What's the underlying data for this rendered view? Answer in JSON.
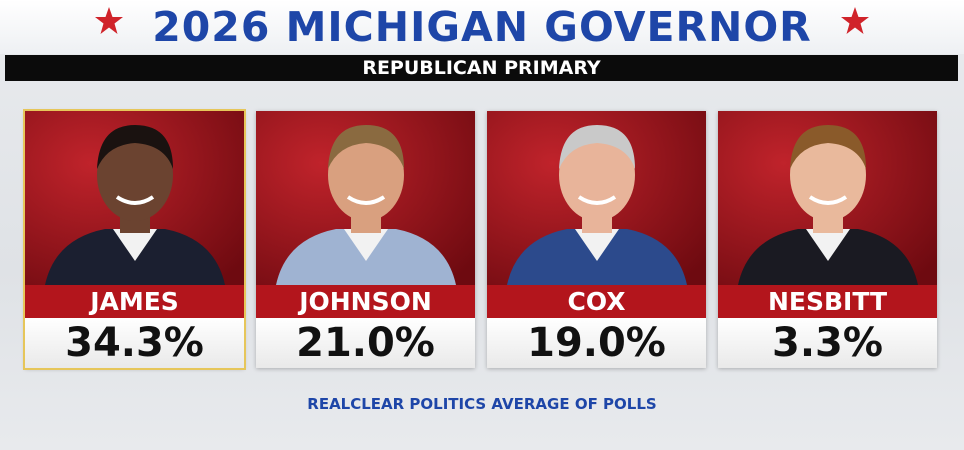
{
  "header": {
    "title": "2026 MICHIGAN GOVERNOR",
    "subtitle": "REPUBLICAN PRIMARY"
  },
  "candidates": [
    {
      "name": "JAMES",
      "value": "34.3%",
      "highlight": true
    },
    {
      "name": "JOHNSON",
      "value": "21.0%",
      "highlight": false
    },
    {
      "name": "COX",
      "value": "19.0%",
      "highlight": false
    },
    {
      "name": "NESBITT",
      "value": "3.3%",
      "highlight": false
    }
  ],
  "footer": {
    "source": "REALCLEAR POLITICS AVERAGE OF POLLS"
  }
}
